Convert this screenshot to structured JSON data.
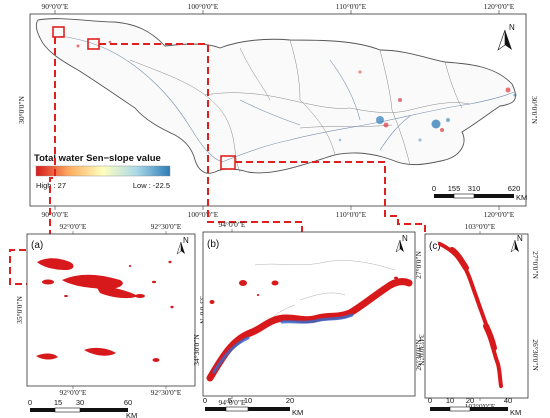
{
  "main_map": {
    "top_ticks": [
      "90°0'0\"E",
      "100°0'0\"E",
      "110°0'0\"E",
      "120°0'0\"E"
    ],
    "bottom_ticks": [
      "90°0'0\"E",
      "100°0'0\"E",
      "110°0'0\"E",
      "120°0'0\"E"
    ],
    "left_tick": "30°0'0\"N",
    "right_tick": "30°0'0\"N",
    "north_label": "N",
    "scalebar": {
      "labels": [
        "0",
        "155",
        "310",
        "620"
      ],
      "unit": "KM"
    }
  },
  "legend": {
    "title": "Total water Sen−slope value",
    "high_label": "High : 27",
    "low_label": "Low : -22.5",
    "colors": [
      "#d7191c",
      "#fdae61",
      "#ffffbf",
      "#abd9e9",
      "#2c7bb6"
    ]
  },
  "panels": [
    {
      "label": "(a)",
      "top_ticks": [
        "92°0'0\"E",
        "92°30'0\"E"
      ],
      "bottom_ticks": [
        "92°0'0\"E",
        "92°30'0\"E"
      ],
      "left_tick": "35°0'0\"N",
      "right_tick": "35°0'0\"N",
      "north_label": "N",
      "scalebar": {
        "labels": [
          "0",
          "15",
          "30",
          "60"
        ],
        "unit": "KM"
      }
    },
    {
      "label": "(b)",
      "top_ticks": [
        "94°0'0\"E"
      ],
      "bottom_ticks": [
        "94°0'0\"E"
      ],
      "left_tick": "34°30'0\"N",
      "right_tick": "34°30'0\"N",
      "north_label": "N",
      "scalebar": {
        "labels": [
          "0",
          "5",
          "10",
          "20"
        ],
        "unit": "KM"
      }
    },
    {
      "label": "(c)",
      "top_ticks": [
        "103°0'0\"E"
      ],
      "bottom_ticks": [
        "103°0'0\"E"
      ],
      "left_ticks": [
        "27°0'0\"N",
        "26°30'0\"N"
      ],
      "right_ticks": [
        "27°0'0\"N",
        "26°30'0\"N"
      ],
      "north_label": "N",
      "scalebar": {
        "labels": [
          "0",
          "10",
          "20",
          "40"
        ],
        "unit": "KM"
      }
    }
  ]
}
